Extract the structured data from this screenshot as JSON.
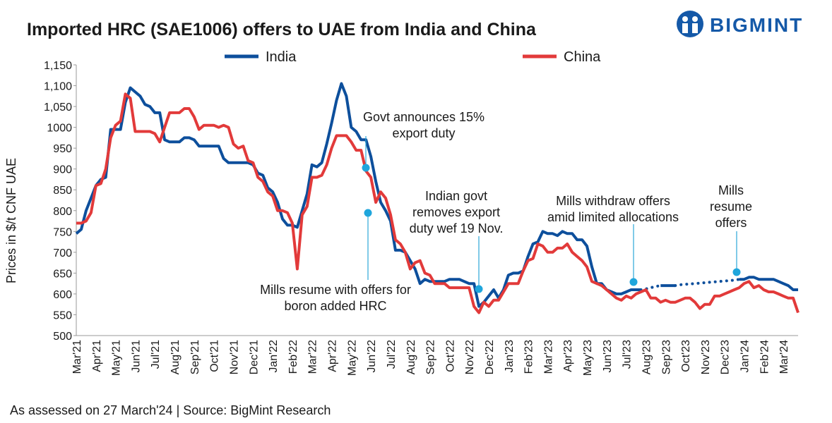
{
  "chart_data": {
    "type": "line",
    "title": "Imported HRC (SAE1006) offers to UAE from India and China",
    "logo": "BIGMINT",
    "y_label": "Prices in $/t CNF UAE",
    "footer": "As assessed on 27 March'24 | Source: BigMint Research",
    "grid": false,
    "ylim": [
      500,
      1150
    ],
    "yticks": [
      500,
      550,
      600,
      650,
      700,
      750,
      800,
      850,
      900,
      950,
      1000,
      {
        "value": 1050,
        "label": "1,050"
      },
      {
        "value": 1100,
        "label": "1,100"
      },
      {
        "value": 1150,
        "label": "1,150"
      }
    ],
    "categories": [
      "Mar'21",
      null,
      null,
      null,
      "Apr'21",
      null,
      null,
      null,
      "May'21",
      null,
      null,
      null,
      "Jun'21",
      null,
      null,
      null,
      "Jul'21",
      null,
      null,
      null,
      "Aug'21",
      null,
      null,
      null,
      "Sep'21",
      null,
      null,
      null,
      "Oct'21",
      null,
      null,
      null,
      "Nov'21",
      null,
      null,
      null,
      "Dec'21",
      null,
      null,
      null,
      "Jan'22",
      null,
      null,
      null,
      "Feb'22",
      null,
      null,
      null,
      "Mar'22",
      null,
      null,
      null,
      "Apr'22",
      null,
      null,
      null,
      "May'22",
      null,
      null,
      null,
      "Jun'22",
      null,
      null,
      null,
      "Jul'22",
      null,
      null,
      null,
      "Aug'22",
      null,
      null,
      null,
      "Sep'22",
      null,
      null,
      null,
      "Oct'22",
      null,
      null,
      null,
      "Nov'22",
      null,
      null,
      null,
      "Dec'22",
      null,
      null,
      null,
      "Jan'23",
      null,
      null,
      null,
      "Feb'23",
      null,
      null,
      null,
      "Mar'23",
      null,
      null,
      null,
      "Apr'23",
      null,
      null,
      null,
      "May'23",
      null,
      null,
      null,
      "Jun'23",
      null,
      null,
      null,
      "Jul'23",
      null,
      null,
      null,
      "Aug'23",
      null,
      null,
      null,
      "Sep'23",
      null,
      null,
      null,
      "Oct'23",
      null,
      null,
      null,
      "Nov'23",
      null,
      null,
      null,
      "Dec'23",
      null,
      null,
      null,
      "Jan'24",
      null,
      null,
      null,
      "Feb'24",
      null,
      null,
      null,
      "Mar'24",
      null,
      null,
      null
    ],
    "series": [
      {
        "name": "India",
        "color": "#0d4f9c",
        "values": [
          745,
          755,
          800,
          830,
          860,
          875,
          880,
          995,
          995,
          995,
          1060,
          1095,
          1085,
          1075,
          1055,
          1050,
          1035,
          1035,
          970,
          965,
          965,
          965,
          975,
          975,
          970,
          955,
          955,
          955,
          955,
          955,
          925,
          915,
          915,
          915,
          915,
          915,
          910,
          890,
          885,
          855,
          845,
          820,
          780,
          765,
          765,
          760,
          800,
          840,
          910,
          905,
          915,
          960,
          1010,
          1065,
          1105,
          1075,
          1000,
          990,
          970,
          970,
          930,
          870,
          820,
          800,
          775,
          705,
          705,
          700,
          680,
          660,
          625,
          635,
          630,
          630,
          630,
          630,
          635,
          635,
          635,
          630,
          625,
          625,
          570,
          580,
          595,
          610,
          590,
          610,
          645,
          650,
          650,
          655,
          690,
          720,
          725,
          750,
          745,
          745,
          740,
          750,
          745,
          745,
          730,
          730,
          715,
          665,
          625,
          625,
          610,
          605,
          600,
          600,
          605,
          610,
          610,
          610,
          null,
          null,
          null,
          620,
          620,
          620,
          620,
          null,
          null,
          null,
          null,
          null,
          null,
          null,
          null,
          null,
          null,
          null,
          null,
          635,
          635,
          640,
          640,
          635,
          635,
          635,
          635,
          630,
          625,
          620,
          610,
          610
        ]
      },
      {
        "name": "India",
        "color": "#0d4f9c",
        "style": "dotted",
        "legend": false,
        "values": [
          null,
          null,
          null,
          null,
          null,
          null,
          null,
          null,
          null,
          null,
          null,
          null,
          null,
          null,
          null,
          null,
          null,
          null,
          null,
          null,
          null,
          null,
          null,
          null,
          null,
          null,
          null,
          null,
          null,
          null,
          null,
          null,
          null,
          null,
          null,
          null,
          null,
          null,
          null,
          null,
          null,
          null,
          null,
          null,
          null,
          null,
          null,
          null,
          null,
          null,
          null,
          null,
          null,
          null,
          null,
          null,
          null,
          null,
          null,
          null,
          null,
          null,
          null,
          null,
          null,
          null,
          null,
          null,
          null,
          null,
          null,
          null,
          null,
          null,
          null,
          null,
          null,
          null,
          null,
          null,
          null,
          null,
          null,
          null,
          null,
          null,
          null,
          null,
          null,
          null,
          null,
          null,
          null,
          null,
          null,
          null,
          null,
          null,
          null,
          null,
          null,
          null,
          null,
          null,
          null,
          null,
          null,
          null,
          null,
          null,
          null,
          null,
          null,
          null,
          null,
          610,
          612,
          615,
          618,
          620,
          null,
          null,
          620,
          622,
          623,
          624,
          625,
          626,
          627,
          628,
          629,
          630,
          631,
          632,
          633,
          635,
          null,
          null,
          null,
          null,
          null,
          null,
          null,
          null,
          null,
          null,
          null,
          null
        ]
      },
      {
        "name": "China",
        "color": "#e23a3a",
        "values": [
          770,
          770,
          775,
          795,
          860,
          865,
          900,
          975,
          1005,
          1015,
          1080,
          1070,
          990,
          990,
          990,
          990,
          985,
          965,
          1000,
          1035,
          1035,
          1035,
          1045,
          1045,
          1025,
          995,
          1005,
          1005,
          1005,
          1000,
          1005,
          1000,
          960,
          950,
          955,
          920,
          915,
          880,
          870,
          845,
          835,
          800,
          800,
          795,
          770,
          660,
          790,
          810,
          880,
          880,
          885,
          910,
          950,
          980,
          980,
          980,
          965,
          945,
          945,
          895,
          880,
          820,
          845,
          830,
          790,
          730,
          720,
          700,
          660,
          675,
          680,
          650,
          645,
          625,
          625,
          625,
          615,
          615,
          615,
          615,
          615,
          570,
          555,
          580,
          570,
          585,
          585,
          605,
          625,
          625,
          625,
          655,
          680,
          685,
          720,
          715,
          700,
          700,
          710,
          710,
          720,
          700,
          690,
          680,
          665,
          630,
          625,
          620,
          610,
          600,
          590,
          585,
          595,
          590,
          600,
          605,
          610,
          590,
          590,
          580,
          585,
          580,
          580,
          585,
          590,
          590,
          580,
          565,
          575,
          575,
          595,
          595,
          600,
          605,
          610,
          615,
          625,
          630,
          615,
          620,
          610,
          605,
          605,
          600,
          595,
          590,
          590,
          555
        ]
      }
    ],
    "annotations": [
      {
        "lines": [
          "Govt announces 15%",
          "export duty"
        ]
      },
      {
        "lines": [
          "Mills resume with offers for",
          "boron added HRC"
        ]
      },
      {
        "lines": [
          "Indian govt",
          "removes export",
          "duty wef 19 Nov."
        ]
      },
      {
        "lines": [
          "Mills withdraw offers",
          "amid limited allocations"
        ]
      },
      {
        "lines": [
          "Mills",
          "resume",
          "offers"
        ]
      }
    ]
  }
}
